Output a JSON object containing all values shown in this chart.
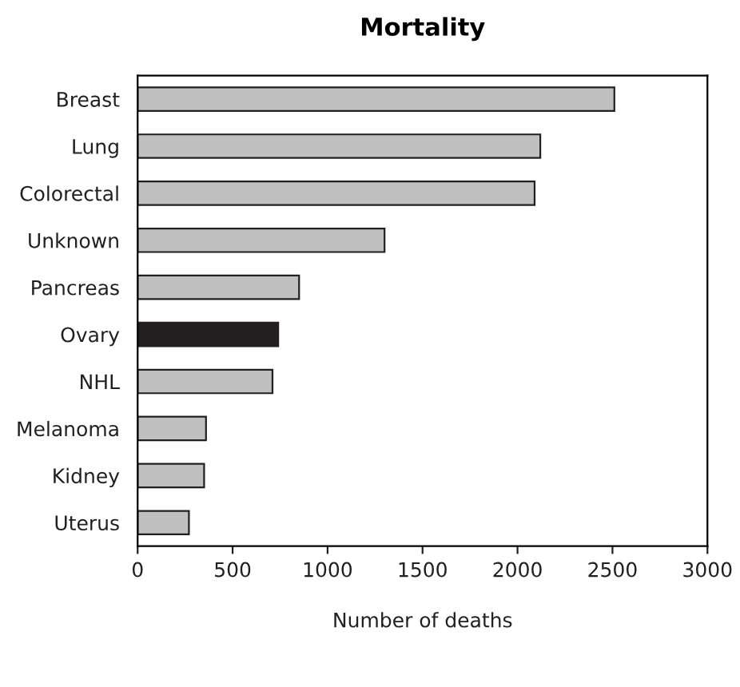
{
  "chart_data": {
    "type": "bar",
    "orientation": "horizontal",
    "title": "Mortality",
    "xlabel": "Number of deaths",
    "categories": [
      "Breast",
      "Lung",
      "Colorectal",
      "Unknown",
      "Pancreas",
      "Ovary",
      "NHL",
      "Melanoma",
      "Kidney",
      "Uterus"
    ],
    "values": [
      2510,
      2120,
      2090,
      1300,
      850,
      740,
      710,
      360,
      350,
      270
    ],
    "colors": [
      "#c0c0c0",
      "#c0c0c0",
      "#c0c0c0",
      "#c0c0c0",
      "#c0c0c0",
      "#231f20",
      "#c0c0c0",
      "#c0c0c0",
      "#c0c0c0",
      "#c0c0c0"
    ],
    "xlim": [
      0,
      3000
    ],
    "xticks": [
      0,
      500,
      1000,
      1500,
      2000,
      2500,
      3000
    ],
    "grid": false,
    "legend": false
  }
}
